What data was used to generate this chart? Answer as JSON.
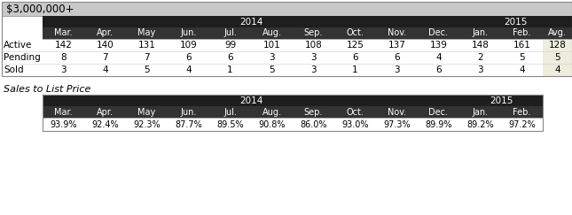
{
  "title": "$3,000,000+",
  "header_row": [
    "Mar.",
    "Apr.",
    "May",
    "Jun.",
    "Jul.",
    "Aug.",
    "Sep.",
    "Oct.",
    "Nov.",
    "Dec.",
    "Jan.",
    "Feb.",
    "Avg."
  ],
  "year_2014_label": "2014",
  "year_2015_label": "2015",
  "rows": [
    {
      "label": "Active",
      "values": [
        142,
        140,
        131,
        109,
        99,
        101,
        108,
        125,
        137,
        139,
        148,
        161,
        128
      ]
    },
    {
      "label": "Pending",
      "values": [
        8,
        7,
        7,
        6,
        6,
        3,
        3,
        6,
        6,
        4,
        2,
        5,
        5
      ]
    },
    {
      "label": "Sold",
      "values": [
        3,
        4,
        5,
        4,
        1,
        5,
        3,
        1,
        3,
        6,
        3,
        4,
        4
      ]
    }
  ],
  "sales_title": "Sales to List Price",
  "sales_header": [
    "Mar.",
    "Apr.",
    "May",
    "Jun.",
    "Jul.",
    "Aug.",
    "Sep.",
    "Oct.",
    "Nov.",
    "Dec.",
    "Jan.",
    "Feb."
  ],
  "sales_values": [
    "93.9%",
    "92.4%",
    "92.3%",
    "87.7%",
    "89.5%",
    "90.8%",
    "86.0%",
    "93.0%",
    "97.3%",
    "89.9%",
    "89.2%",
    "97.2%"
  ],
  "dark_header_bg": "#1e1e1e",
  "dark_col_bg": "#333333",
  "header_fg": "#ffffff",
  "title_bg": "#c8c8c8",
  "title_fg": "#000000",
  "avg_bg": "#ededde",
  "body_bg": "#ffffff",
  "body_fg": "#000000",
  "outer_bg": "#ffffff",
  "border_color": "#888888",
  "sep_color": "#999999"
}
